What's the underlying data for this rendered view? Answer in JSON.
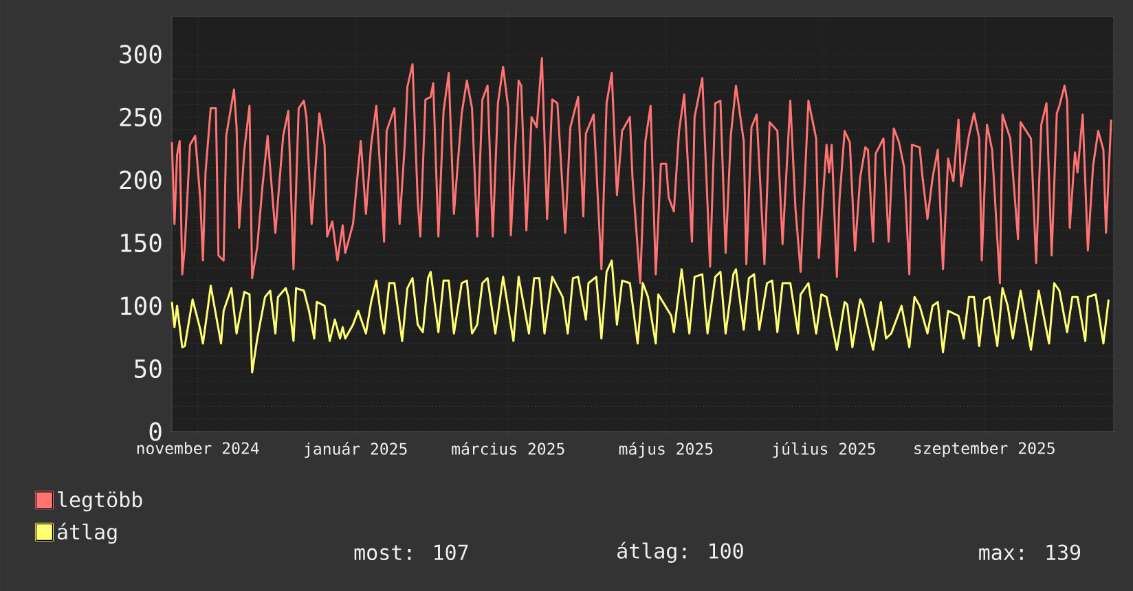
{
  "chart_data": {
    "type": "line",
    "xlim": [
      "2024-10-22",
      "2025-10-21"
    ],
    "ylim": [
      0,
      330
    ],
    "xticks": [
      {
        "value": "2024-11-01",
        "label": "november 2024"
      },
      {
        "value": "2025-01-01",
        "label": "január 2025"
      },
      {
        "value": "2025-03-01",
        "label": "március 2025"
      },
      {
        "value": "2025-05-01",
        "label": "május 2025"
      },
      {
        "value": "2025-07-01",
        "label": "július 2025"
      },
      {
        "value": "2025-09-01",
        "label": "szeptember 2025"
      }
    ],
    "yticks": [
      0,
      50,
      100,
      150,
      200,
      250,
      300
    ],
    "grid": true,
    "legend": "bottom",
    "annotations": [
      "most: 107",
      "átlag: 100",
      "max: 139"
    ],
    "series": [
      {
        "name": "legtöbb",
        "color": "#ff7373",
        "x": [
          "2024-10-22",
          "2024-10-23",
          "2024-10-24",
          "2024-10-25",
          "2024-10-26",
          "2024-10-27",
          "2024-10-29",
          "2024-10-31",
          "2024-11-02",
          "2024-11-03",
          "2024-11-04",
          "2024-11-06",
          "2024-11-08",
          "2024-11-09",
          "2024-11-11",
          "2024-11-12",
          "2024-11-15",
          "2024-11-16",
          "2024-11-17",
          "2024-11-19",
          "2024-11-21",
          "2024-11-22",
          "2024-11-24",
          "2024-11-26",
          "2024-11-28",
          "2024-12-01",
          "2024-12-04",
          "2024-12-06",
          "2024-12-08",
          "2024-12-10",
          "2024-12-12",
          "2024-12-13",
          "2024-12-15",
          "2024-12-18",
          "2024-12-20",
          "2024-12-21",
          "2024-12-23",
          "2024-12-25",
          "2024-12-27",
          "2024-12-28",
          "2024-12-31",
          "2025-01-03",
          "2025-01-05",
          "2025-01-07",
          "2025-01-09",
          "2025-01-11",
          "2025-01-12",
          "2025-01-13",
          "2025-01-16",
          "2025-01-18",
          "2025-01-20",
          "2025-01-21",
          "2025-01-23",
          "2025-01-25",
          "2025-01-26",
          "2025-01-28",
          "2025-01-30",
          "2025-01-31",
          "2025-02-02",
          "2025-02-04",
          "2025-02-06",
          "2025-02-08",
          "2025-02-11",
          "2025-02-13",
          "2025-02-15",
          "2025-02-17",
          "2025-02-19",
          "2025-02-21",
          "2025-02-23",
          "2025-02-25",
          "2025-02-27",
          "2025-03-01",
          "2025-03-02",
          "2025-03-05",
          "2025-03-06",
          "2025-03-08",
          "2025-03-10",
          "2025-03-12",
          "2025-03-14",
          "2025-03-16",
          "2025-03-18",
          "2025-03-20",
          "2025-03-23",
          "2025-03-25",
          "2025-03-28",
          "2025-03-30",
          "2025-03-31",
          "2025-04-03",
          "2025-04-06",
          "2025-04-08",
          "2025-04-10",
          "2025-04-12",
          "2025-04-14",
          "2025-04-17",
          "2025-04-18",
          "2025-04-21",
          "2025-04-23",
          "2025-04-25",
          "2025-04-27",
          "2025-04-29",
          "2025-05-01",
          "2025-05-02",
          "2025-05-04",
          "2025-05-06",
          "2025-05-08",
          "2025-05-11",
          "2025-05-12",
          "2025-05-15",
          "2025-05-18",
          "2025-05-20",
          "2025-05-22",
          "2025-05-24",
          "2025-05-26",
          "2025-05-28",
          "2025-05-31",
          "2025-06-01",
          "2025-06-03",
          "2025-06-05",
          "2025-06-08",
          "2025-06-10",
          "2025-06-13",
          "2025-06-15",
          "2025-06-18",
          "2025-06-20",
          "2025-06-22",
          "2025-06-25",
          "2025-06-28",
          "2025-06-29",
          "2025-07-02",
          "2025-07-03",
          "2025-07-04",
          "2025-07-06",
          "2025-07-07",
          "2025-07-09",
          "2025-07-11",
          "2025-07-13",
          "2025-07-15",
          "2025-07-17",
          "2025-07-18",
          "2025-07-20",
          "2025-07-21",
          "2025-07-24",
          "2025-07-26",
          "2025-07-28",
          "2025-07-30",
          "2025-08-01",
          "2025-08-03",
          "2025-08-04",
          "2025-08-07",
          "2025-08-08",
          "2025-08-10",
          "2025-08-12",
          "2025-08-14",
          "2025-08-16",
          "2025-08-18",
          "2025-08-20",
          "2025-08-22",
          "2025-08-23",
          "2025-08-26",
          "2025-08-28",
          "2025-08-30",
          "2025-08-31",
          "2025-09-02",
          "2025-09-04",
          "2025-09-07",
          "2025-09-08",
          "2025-09-11",
          "2025-09-14",
          "2025-09-15",
          "2025-09-19",
          "2025-09-21",
          "2025-09-23",
          "2025-09-25",
          "2025-09-27",
          "2025-09-29",
          "2025-09-30",
          "2025-10-02",
          "2025-10-03",
          "2025-10-04",
          "2025-10-06",
          "2025-10-07",
          "2025-10-09",
          "2025-10-11",
          "2025-10-13",
          "2025-10-15",
          "2025-10-17",
          "2025-10-18",
          "2025-10-20"
        ],
        "values": [
          230,
          165,
          220,
          231,
          125,
          147,
          228,
          235,
          184,
          136,
          206,
          257,
          257,
          140,
          136,
          235,
          272,
          242,
          162,
          224,
          259,
          122,
          147,
          195,
          235,
          158,
          235,
          255,
          129,
          257,
          263,
          250,
          165,
          253,
          228,
          155,
          167,
          136,
          164,
          142,
          165,
          231,
          173,
          228,
          259,
          191,
          151,
          239,
          257,
          165,
          228,
          274,
          292,
          184,
          155,
          264,
          266,
          277,
          155,
          255,
          285,
          173,
          253,
          279,
          257,
          155,
          264,
          275,
          155,
          261,
          290,
          257,
          156,
          279,
          275,
          160,
          250,
          242,
          297,
          169,
          264,
          261,
          158,
          242,
          266,
          171,
          237,
          252,
          129,
          261,
          285,
          188,
          239,
          250,
          202,
          118,
          231,
          259,
          125,
          213,
          213,
          186,
          175,
          239,
          268,
          151,
          250,
          281,
          131,
          261,
          263,
          142,
          235,
          275,
          231,
          133,
          242,
          252,
          133,
          246,
          239,
          149,
          263,
          177,
          127,
          263,
          233,
          138,
          228,
          206,
          228,
          123,
          184,
          239,
          230,
          144,
          202,
          226,
          224,
          151,
          221,
          233,
          151,
          241,
          230,
          210,
          125,
          228,
          226,
          204,
          169,
          202,
          224,
          129,
          217,
          199,
          248,
          195,
          235,
          253,
          233,
          136,
          244,
          224,
          118,
          252,
          233,
          153,
          246,
          233,
          134,
          244,
          261,
          140,
          253,
          259,
          275,
          263,
          162,
          222,
          206,
          252,
          144,
          211,
          239,
          224,
          158,
          248
        ]
      },
      {
        "name": "átlag",
        "color": "#ffff73",
        "x": [
          "2024-10-22",
          "2024-10-23",
          "2024-10-24",
          "2024-10-26",
          "2024-10-27",
          "2024-10-30",
          "2024-11-02",
          "2024-11-03",
          "2024-11-05",
          "2024-11-06",
          "2024-11-10",
          "2024-11-11",
          "2024-11-14",
          "2024-11-16",
          "2024-11-19",
          "2024-11-21",
          "2024-11-22",
          "2024-11-24",
          "2024-11-27",
          "2024-11-29",
          "2024-12-01",
          "2024-12-02",
          "2024-12-05",
          "2024-12-06",
          "2024-12-08",
          "2024-12-09",
          "2024-12-12",
          "2024-12-14",
          "2024-12-16",
          "2024-12-17",
          "2024-12-20",
          "2024-12-22",
          "2024-12-24",
          "2024-12-26",
          "2024-12-27",
          "2024-12-28",
          "2024-12-31",
          "2025-01-02",
          "2025-01-05",
          "2025-01-07",
          "2025-01-09",
          "2025-01-11",
          "2025-01-12",
          "2025-01-14",
          "2025-01-16",
          "2025-01-19",
          "2025-01-21",
          "2025-01-23",
          "2025-01-25",
          "2025-01-27",
          "2025-01-29",
          "2025-01-30",
          "2025-02-02",
          "2025-02-04",
          "2025-02-06",
          "2025-02-08",
          "2025-02-11",
          "2025-02-13",
          "2025-02-15",
          "2025-02-17",
          "2025-02-19",
          "2025-02-21",
          "2025-02-24",
          "2025-02-27",
          "2025-03-03",
          "2025-03-05",
          "2025-03-09",
          "2025-03-11",
          "2025-03-13",
          "2025-03-15",
          "2025-03-18",
          "2025-03-22",
          "2025-03-24",
          "2025-03-26",
          "2025-03-28",
          "2025-03-31",
          "2025-04-01",
          "2025-04-04",
          "2025-04-06",
          "2025-04-08",
          "2025-04-10",
          "2025-04-12",
          "2025-04-14",
          "2025-04-17",
          "2025-04-20",
          "2025-04-22",
          "2025-04-24",
          "2025-04-27",
          "2025-04-28",
          "2025-05-03",
          "2025-05-04",
          "2025-05-07",
          "2025-05-10",
          "2025-05-12",
          "2025-05-15",
          "2025-05-17",
          "2025-05-20",
          "2025-05-22",
          "2025-05-24",
          "2025-05-27",
          "2025-05-28",
          "2025-05-31",
          "2025-06-02",
          "2025-06-04",
          "2025-06-06",
          "2025-06-09",
          "2025-06-11",
          "2025-06-13",
          "2025-06-15",
          "2025-06-18",
          "2025-06-21",
          "2025-06-22",
          "2025-06-25",
          "2025-06-28",
          "2025-06-30",
          "2025-07-02",
          "2025-07-06",
          "2025-07-09",
          "2025-07-10",
          "2025-07-12",
          "2025-07-15",
          "2025-07-16",
          "2025-07-20",
          "2025-07-23",
          "2025-07-25",
          "2025-07-27",
          "2025-07-31",
          "2025-08-03",
          "2025-08-05",
          "2025-08-07",
          "2025-08-10",
          "2025-08-12",
          "2025-08-14",
          "2025-08-16",
          "2025-08-18",
          "2025-08-22",
          "2025-08-24",
          "2025-08-26",
          "2025-08-28",
          "2025-08-30",
          "2025-09-01",
          "2025-09-03",
          "2025-09-06",
          "2025-09-08",
          "2025-09-10",
          "2025-09-12",
          "2025-09-15",
          "2025-09-19",
          "2025-09-22",
          "2025-09-26",
          "2025-09-28",
          "2025-09-30",
          "2025-10-03",
          "2025-10-05",
          "2025-10-07",
          "2025-10-10",
          "2025-10-11",
          "2025-10-14",
          "2025-10-17",
          "2025-10-19"
        ],
        "values": [
          103,
          83,
          100,
          67,
          68,
          105,
          81,
          70,
          100,
          116,
          70,
          96,
          114,
          78,
          111,
          109,
          47,
          74,
          107,
          112,
          78,
          107,
          114,
          107,
          72,
          114,
          112,
          96,
          74,
          103,
          100,
          72,
          89,
          74,
          83,
          74,
          85,
          96,
          78,
          103,
          120,
          89,
          78,
          118,
          118,
          72,
          114,
          122,
          85,
          79,
          122,
          127,
          79,
          120,
          120,
          78,
          118,
          120,
          78,
          85,
          118,
          122,
          78,
          123,
          72,
          123,
          78,
          122,
          122,
          78,
          123,
          107,
          78,
          122,
          123,
          89,
          118,
          123,
          74,
          127,
          136,
          85,
          120,
          118,
          70,
          118,
          107,
          70,
          109,
          92,
          79,
          129,
          78,
          123,
          125,
          78,
          123,
          127,
          78,
          125,
          129,
          81,
          122,
          125,
          81,
          118,
          120,
          79,
          118,
          118,
          78,
          109,
          118,
          78,
          109,
          107,
          65,
          103,
          101,
          67,
          105,
          101,
          65,
          103,
          74,
          78,
          100,
          67,
          107,
          100,
          78,
          100,
          103,
          63,
          96,
          92,
          74,
          107,
          107,
          68,
          105,
          107,
          68,
          114,
          100,
          74,
          112,
          65,
          112,
          70,
          118,
          112,
          79,
          107,
          107,
          72,
          107,
          109,
          70,
          105
        ]
      }
    ]
  }
}
